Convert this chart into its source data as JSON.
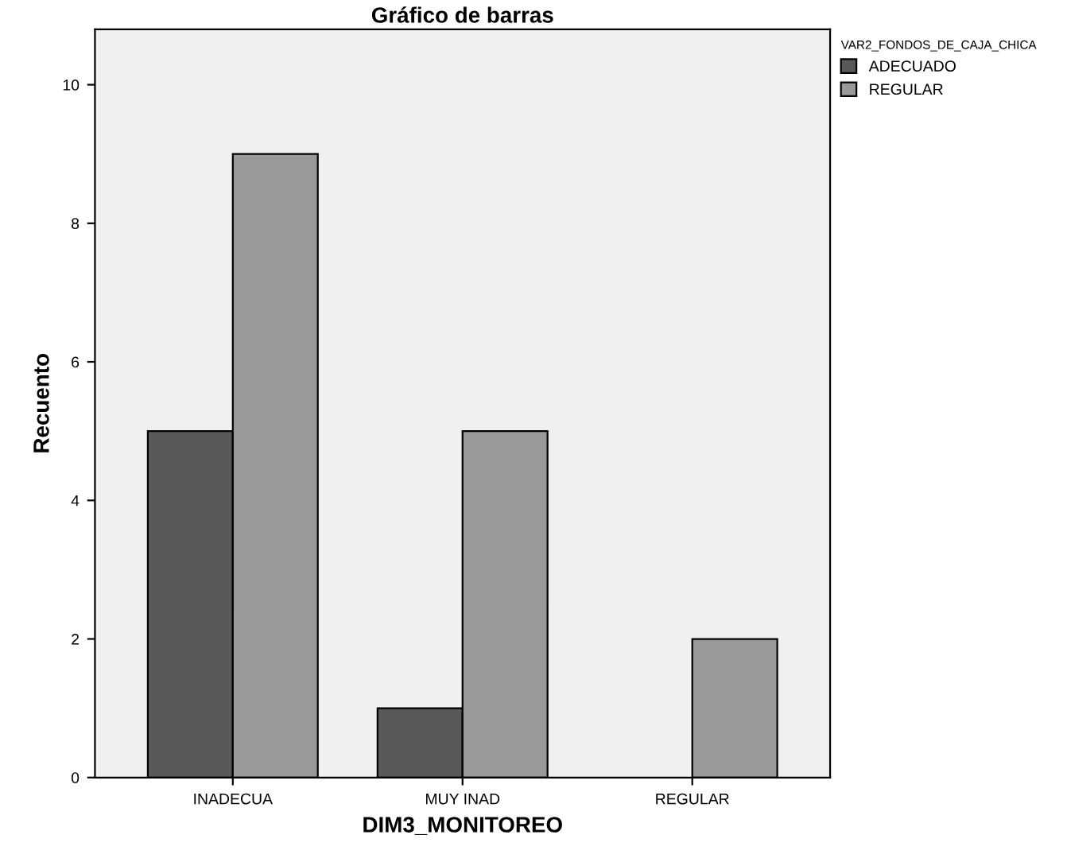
{
  "chart_data": {
    "type": "bar",
    "title": "Gráfico de barras",
    "xlabel": "DIM3_MONITOREO",
    "ylabel": "Recuento",
    "legend_title": "VAR2_FONDOS_DE_CAJA_CHICA",
    "categories": [
      "INADECUA",
      "MUY INAD",
      "REGULAR"
    ],
    "series": [
      {
        "name": "ADECUADO",
        "color": "#595959",
        "values": [
          5,
          1,
          null
        ]
      },
      {
        "name": "REGULAR",
        "color": "#999999",
        "values": [
          9,
          5,
          2
        ]
      }
    ],
    "ylim": [
      0,
      10.8
    ],
    "yticks": [
      0,
      2,
      4,
      6,
      8,
      10
    ],
    "grid": false,
    "legend": "top right"
  }
}
